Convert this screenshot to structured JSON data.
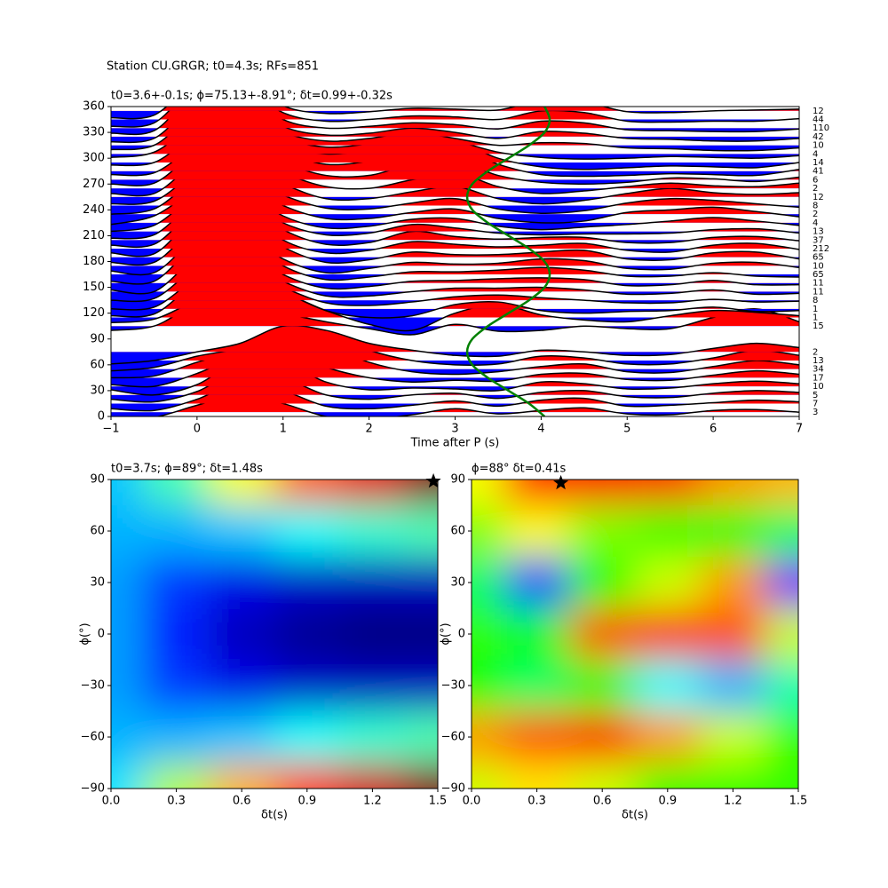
{
  "chart_data": [
    {
      "type": "wiggle",
      "suptitle": "Station CU.GRGR; t0=4.3s; RFs=851",
      "title": "t0=3.6+-0.1s; ϕ=75.13+-8.91°; δt=0.99+-0.32s",
      "xlabel": "Time after P (s)",
      "xlim": [
        -1,
        7
      ],
      "xticks": [
        {
          "value": -1,
          "label": "−1"
        },
        0,
        1,
        2,
        3,
        4,
        5,
        6,
        7
      ],
      "ylim": [
        0,
        360
      ],
      "yticks": [
        0,
        30,
        60,
        90,
        120,
        150,
        180,
        210,
        240,
        270,
        300,
        330,
        360
      ],
      "pos_color": "red",
      "neg_color": "blue",
      "x": [
        -1,
        -0.5,
        0,
        0.5,
        1,
        1.5,
        2,
        2.5,
        3,
        3.5,
        4,
        4.5,
        5,
        5.5,
        6,
        6.5,
        7
      ],
      "series": [
        {
          "baz": 5,
          "count": 3,
          "values": [
            -8,
            -6,
            8,
            20,
            10,
            -5,
            -8,
            -3,
            4,
            -2,
            2,
            5,
            -2,
            -3,
            2,
            3,
            0
          ]
        },
        {
          "baz": 15,
          "count": 7,
          "values": [
            -6,
            -8,
            5,
            25,
            15,
            -3,
            -6,
            -2,
            3,
            -3,
            4,
            6,
            -3,
            -2,
            1,
            4,
            2
          ]
        },
        {
          "baz": 25,
          "count": 5,
          "values": [
            -5,
            -8,
            4,
            28,
            20,
            0,
            -5,
            0,
            2,
            -4,
            3,
            5,
            -2,
            -3,
            2,
            5,
            3
          ]
        },
        {
          "baz": 35,
          "count": 10,
          "values": [
            -4,
            -10,
            2,
            30,
            28,
            5,
            -4,
            -2,
            -3,
            -5,
            5,
            3,
            -3,
            -2,
            3,
            6,
            3
          ]
        },
        {
          "baz": 45,
          "count": 17,
          "values": [
            -8,
            -10,
            5,
            25,
            30,
            12,
            0,
            -5,
            -3,
            -4,
            4,
            5,
            -2,
            -3,
            3,
            8,
            4
          ]
        },
        {
          "baz": 55,
          "count": 34,
          "values": [
            -10,
            -8,
            8,
            22,
            35,
            28,
            8,
            -3,
            -6,
            -3,
            3,
            6,
            -3,
            -4,
            3,
            10,
            5
          ]
        },
        {
          "baz": 65,
          "count": 13,
          "values": [
            -12,
            -8,
            5,
            15,
            38,
            32,
            12,
            0,
            -5,
            -4,
            5,
            3,
            -4,
            -4,
            3,
            12,
            6
          ]
        },
        {
          "baz": 75,
          "count": 2,
          "values": [
            -14,
            -10,
            0,
            10,
            30,
            25,
            10,
            2,
            -4,
            -5,
            2,
            0,
            -4,
            -3,
            4,
            10,
            5
          ]
        },
        {
          "baz": 105,
          "count": 15,
          "values": [
            -5,
            0,
            25,
            28,
            15,
            5,
            -3,
            -10,
            2,
            -6,
            -5,
            0,
            -3,
            -3,
            10,
            20,
            5
          ]
        },
        {
          "baz": 115,
          "count": 1,
          "values": [
            -6,
            -2,
            20,
            35,
            28,
            8,
            -8,
            -15,
            5,
            15,
            3,
            -3,
            -5,
            2,
            8,
            6,
            2
          ]
        },
        {
          "baz": 125,
          "count": 1,
          "values": [
            -8,
            -6,
            30,
            40,
            20,
            -2,
            -10,
            -8,
            5,
            8,
            -2,
            -5,
            -3,
            -2,
            2,
            -3,
            -2
          ]
        },
        {
          "baz": 135,
          "count": 8,
          "values": [
            -10,
            -8,
            25,
            38,
            15,
            -3,
            -6,
            -2,
            4,
            6,
            3,
            0,
            -3,
            -3,
            1,
            -2,
            -1
          ]
        },
        {
          "baz": 145,
          "count": 11,
          "values": [
            -10,
            -8,
            28,
            40,
            12,
            -5,
            -5,
            0,
            4,
            4,
            5,
            2,
            -3,
            -2,
            2,
            -3,
            -2
          ]
        },
        {
          "baz": 155,
          "count": 11,
          "values": [
            -8,
            -10,
            30,
            42,
            10,
            -6,
            -4,
            2,
            3,
            5,
            6,
            4,
            -3,
            -2,
            3,
            -2,
            -2
          ]
        },
        {
          "baz": 165,
          "count": 65,
          "values": [
            -8,
            -8,
            35,
            45,
            10,
            -6,
            -3,
            3,
            3,
            5,
            8,
            5,
            -2,
            -2,
            2,
            -2,
            -3
          ]
        },
        {
          "baz": 175,
          "count": 10,
          "values": [
            -6,
            -8,
            32,
            40,
            8,
            -8,
            -3,
            4,
            2,
            3,
            8,
            6,
            -3,
            -4,
            3,
            4,
            -2
          ]
        },
        {
          "baz": 185,
          "count": 65,
          "values": [
            -6,
            -6,
            35,
            45,
            12,
            -6,
            -3,
            6,
            3,
            3,
            6,
            8,
            -2,
            -3,
            5,
            6,
            -2
          ]
        },
        {
          "baz": 195,
          "count": 212,
          "values": [
            -5,
            -6,
            38,
            48,
            10,
            -5,
            -2,
            8,
            5,
            2,
            4,
            6,
            -2,
            -4,
            4,
            6,
            -1
          ]
        },
        {
          "baz": 205,
          "count": 37,
          "values": [
            -6,
            -5,
            36,
            45,
            12,
            -5,
            -3,
            10,
            4,
            1,
            3,
            3,
            -3,
            -3,
            3,
            4,
            -1
          ]
        },
        {
          "baz": 215,
          "count": 13,
          "values": [
            -8,
            -4,
            35,
            42,
            10,
            -4,
            -2,
            8,
            4,
            -2,
            -4,
            -3,
            -3,
            -2,
            2,
            3,
            -2
          ]
        },
        {
          "baz": 225,
          "count": 4,
          "values": [
            -10,
            -3,
            32,
            40,
            8,
            -6,
            -4,
            4,
            5,
            -4,
            -8,
            -5,
            -2,
            2,
            6,
            2,
            -3
          ]
        },
        {
          "baz": 235,
          "count": 2,
          "values": [
            -12,
            -2,
            28,
            38,
            10,
            -5,
            -5,
            2,
            6,
            -5,
            -10,
            -8,
            2,
            5,
            8,
            3,
            -3
          ]
        },
        {
          "baz": 245,
          "count": 8,
          "values": [
            -10,
            -4,
            30,
            36,
            12,
            -3,
            -4,
            3,
            8,
            -4,
            -9,
            -6,
            3,
            8,
            6,
            2,
            -2
          ]
        },
        {
          "baz": 255,
          "count": 12,
          "values": [
            -8,
            -5,
            28,
            38,
            15,
            -2,
            -2,
            6,
            12,
            -2,
            -8,
            -4,
            4,
            10,
            5,
            3,
            5
          ]
        },
        {
          "baz": 265,
          "count": 2,
          "values": [
            -6,
            -6,
            30,
            40,
            18,
            2,
            0,
            10,
            18,
            2,
            -6,
            -3,
            2,
            6,
            3,
            2,
            6
          ]
        },
        {
          "baz": 275,
          "count": 6,
          "values": [
            -5,
            -4,
            32,
            42,
            20,
            5,
            5,
            18,
            22,
            5,
            -3,
            -5,
            -3,
            2,
            1,
            -2,
            3
          ]
        },
        {
          "baz": 285,
          "count": 41,
          "values": [
            -4,
            -2,
            30,
            40,
            22,
            8,
            12,
            25,
            28,
            8,
            -4,
            -6,
            -5,
            -3,
            -4,
            -5,
            2
          ]
        },
        {
          "baz": 295,
          "count": 14,
          "values": [
            -3,
            0,
            32,
            38,
            20,
            10,
            15,
            28,
            25,
            5,
            -5,
            -8,
            -6,
            -4,
            -5,
            -6,
            0
          ]
        },
        {
          "baz": 305,
          "count": 4,
          "values": [
            -4,
            2,
            35,
            40,
            18,
            8,
            12,
            22,
            15,
            2,
            -4,
            -6,
            -5,
            -3,
            -4,
            -5,
            -2
          ]
        },
        {
          "baz": 315,
          "count": 10,
          "values": [
            -5,
            0,
            38,
            42,
            15,
            5,
            8,
            15,
            8,
            0,
            3,
            2,
            -3,
            -4,
            -6,
            -6,
            -3
          ]
        },
        {
          "baz": 325,
          "count": 42,
          "values": [
            -6,
            -2,
            40,
            45,
            12,
            2,
            4,
            10,
            5,
            -2,
            6,
            4,
            -2,
            -3,
            -5,
            -5,
            -2
          ]
        },
        {
          "baz": 335,
          "count": 110,
          "values": [
            -6,
            -3,
            42,
            45,
            10,
            0,
            2,
            6,
            4,
            -1,
            8,
            6,
            -2,
            -3,
            -4,
            -4,
            -1
          ]
        },
        {
          "baz": 345,
          "count": 44,
          "values": [
            -8,
            -4,
            40,
            42,
            8,
            -2,
            0,
            4,
            3,
            0,
            10,
            8,
            -2,
            -3,
            -2,
            -2,
            1
          ]
        },
        {
          "baz": 355,
          "count": 12,
          "values": [
            -8,
            -5,
            35,
            40,
            6,
            -3,
            -1,
            3,
            2,
            1,
            12,
            10,
            -1,
            -2,
            0,
            1,
            2
          ]
        }
      ],
      "fit": {
        "color": "green",
        "x": [
          4.04,
          3.86,
          3.62,
          3.38,
          3.2,
          3.14,
          3.2,
          3.38,
          3.62,
          3.86,
          4.04,
          4.1,
          4.04,
          3.86,
          3.62,
          3.38,
          3.2,
          3.14,
          3.2,
          3.38,
          3.62,
          3.86,
          4.04,
          4.1,
          4.04
        ],
        "y": [
          0,
          15,
          30,
          45,
          60,
          75,
          90,
          105,
          120,
          135,
          150,
          165,
          180,
          195,
          210,
          225,
          240,
          255,
          270,
          285,
          300,
          315,
          330,
          345,
          360
        ]
      }
    },
    {
      "type": "heatmap",
      "colormap": "jet",
      "title": "t0=3.7s; ϕ=89°; δt=1.48s",
      "xlabel": "δt(s)",
      "ylabel": "ϕ(°)",
      "xlim": [
        0,
        1.5
      ],
      "xticks": [
        {
          "value": 0,
          "label": "0.0"
        },
        {
          "value": 0.3,
          "label": "0.3"
        },
        {
          "value": 0.6,
          "label": "0.6"
        },
        {
          "value": 0.9,
          "label": "0.9"
        },
        {
          "value": 1.2,
          "label": "1.2"
        },
        {
          "value": 1.5,
          "label": "1.5"
        }
      ],
      "ylim": [
        -90,
        90
      ],
      "yticks": [
        {
          "value": -90,
          "label": "−90"
        },
        {
          "value": -60,
          "label": "−60"
        },
        {
          "value": -30,
          "label": "−30"
        },
        0,
        30,
        60,
        90
      ],
      "x": [
        0,
        0.3,
        0.6,
        0.9,
        1.2,
        1.5
      ],
      "y": [
        90,
        60,
        30,
        0,
        -30,
        -60,
        -90
      ],
      "z": [
        [
          0.32,
          0.45,
          0.62,
          0.78,
          0.9,
          1.0
        ],
        [
          0.3,
          0.3,
          0.32,
          0.38,
          0.42,
          0.45
        ],
        [
          0.28,
          0.18,
          0.1,
          0.07,
          0.06,
          0.06
        ],
        [
          0.28,
          0.15,
          0.06,
          0.02,
          0.0,
          0.0
        ],
        [
          0.28,
          0.18,
          0.1,
          0.07,
          0.06,
          0.06
        ],
        [
          0.3,
          0.3,
          0.32,
          0.38,
          0.42,
          0.45
        ],
        [
          0.35,
          0.55,
          0.7,
          0.82,
          0.92,
          1.0
        ]
      ],
      "marker": {
        "x": 1.48,
        "y": 89,
        "color": "black"
      }
    },
    {
      "type": "heatmap",
      "colormap": "hsv",
      "title": "ϕ=88° δt=0.41s",
      "xlabel": "δt(s)",
      "ylabel": "ϕ(°)",
      "xlim": [
        0,
        1.5
      ],
      "xticks": [
        {
          "value": 0,
          "label": "0.0"
        },
        {
          "value": 0.3,
          "label": "0.3"
        },
        {
          "value": 0.6,
          "label": "0.6"
        },
        {
          "value": 0.9,
          "label": "0.9"
        },
        {
          "value": 1.2,
          "label": "1.2"
        },
        {
          "value": 1.5,
          "label": "1.5"
        }
      ],
      "ylim": [
        -90,
        90
      ],
      "yticks": [
        {
          "value": -90,
          "label": "−90"
        },
        {
          "value": -60,
          "label": "−60"
        },
        {
          "value": -30,
          "label": "−30"
        },
        0,
        30,
        60,
        90
      ],
      "x": [
        0,
        0.3,
        0.6,
        0.9,
        1.2,
        1.5
      ],
      "y": [
        90,
        60,
        30,
        0,
        -30,
        -60,
        -90
      ],
      "z": [
        [
          0.17,
          0.02,
          0.0,
          0.03,
          0.1,
          0.12
        ],
        [
          0.25,
          0.17,
          0.25,
          0.3,
          0.35,
          0.4
        ],
        [
          0.4,
          0.62,
          0.33,
          0.2,
          0.1,
          0.75
        ],
        [
          0.3,
          0.35,
          0.05,
          0.02,
          0.05,
          0.2
        ],
        [
          0.33,
          0.4,
          0.35,
          0.5,
          0.55,
          0.45
        ],
        [
          0.1,
          0.05,
          0.02,
          0.1,
          0.2,
          0.3
        ],
        [
          0.2,
          0.15,
          0.2,
          0.3,
          0.3,
          0.3
        ]
      ],
      "marker": {
        "x": 0.41,
        "y": 88,
        "color": "black"
      }
    }
  ]
}
